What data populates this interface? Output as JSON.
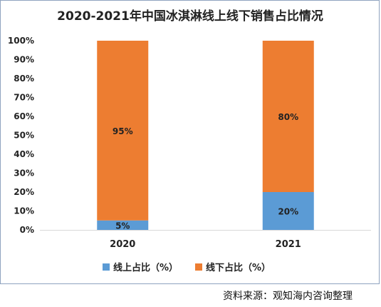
{
  "chart_data": {
    "type": "bar",
    "stacked": true,
    "title": "2020-2021年中国冰淇淋线上线下销售占比情况",
    "categories": [
      "2020",
      "2021"
    ],
    "series": [
      {
        "name": "线上占比（%）",
        "values": [
          5,
          20
        ],
        "labels": [
          "5%",
          "20%"
        ],
        "color": "#5b9bd5"
      },
      {
        "name": "线下占比（%）",
        "values": [
          95,
          80
        ],
        "labels": [
          "95%",
          "80%"
        ],
        "color": "#ed7d31"
      }
    ],
    "ylim": [
      0,
      100
    ],
    "yticks": [
      "0%",
      "10%",
      "20%",
      "30%",
      "40%",
      "50%",
      "60%",
      "70%",
      "80%",
      "90%",
      "100%"
    ],
    "grid": false,
    "legend_position": "bottom"
  },
  "source_text": "资料来源：观知海内咨询整理"
}
